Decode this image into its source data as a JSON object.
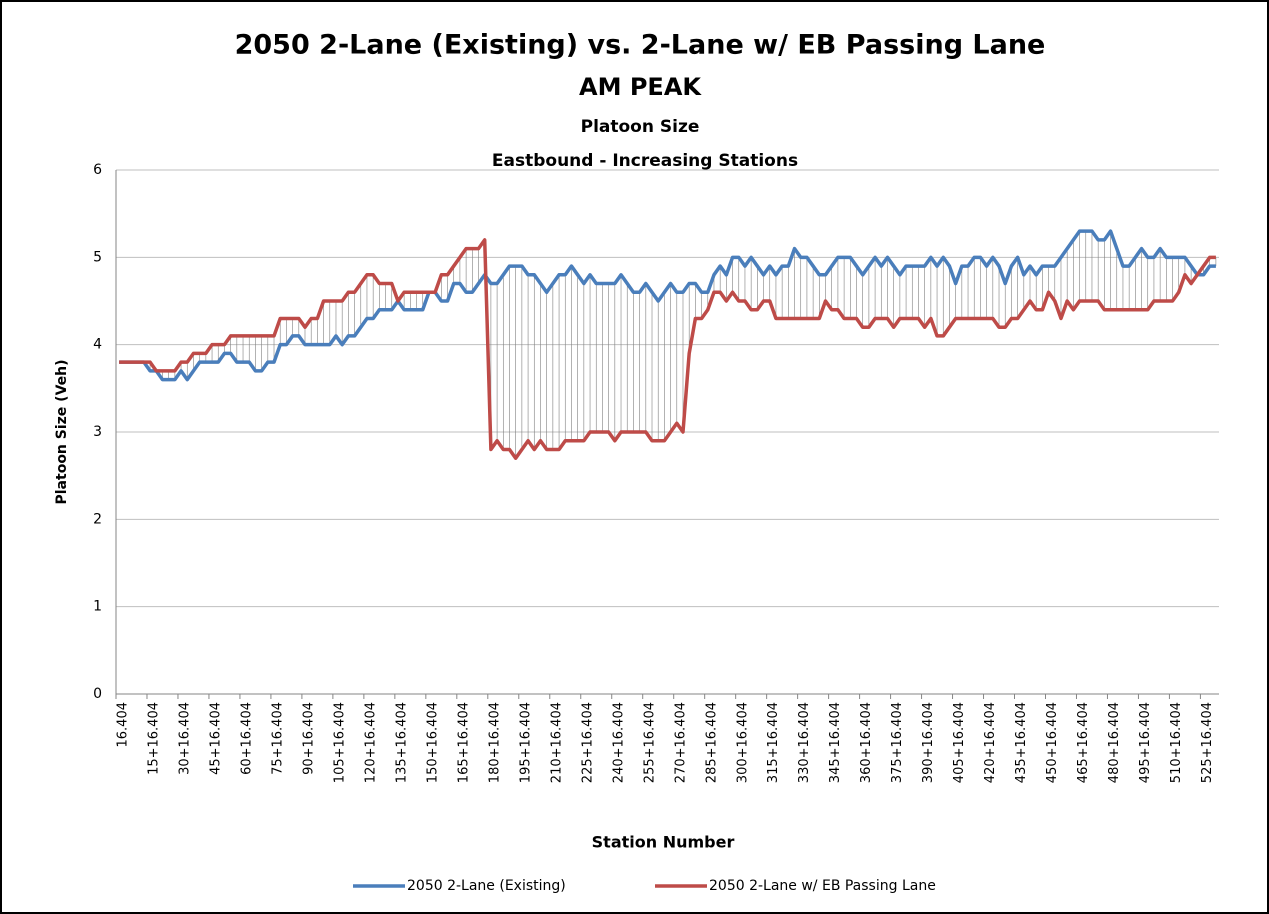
{
  "chart_data": {
    "type": "line",
    "title_lines": [
      "2050 2-Lane (Existing) vs. 2-Lane w/ EB Passing Lane",
      "AM PEAK",
      "Platoon Size",
      "Eastbound - Increasing Stations"
    ],
    "x_label": "Station Number",
    "y_label": "Platoon Size (Veh)",
    "ylim": [
      0,
      6
    ],
    "yticks": [
      0,
      1,
      2,
      3,
      4,
      5,
      6
    ],
    "grid": true,
    "legend": "bottom",
    "categories": [
      "16.404",
      null,
      null,
      null,
      null,
      "15+16.404",
      null,
      null,
      null,
      null,
      "30+16.404",
      null,
      null,
      null,
      null,
      "45+16.404",
      null,
      null,
      null,
      null,
      "60+16.404",
      null,
      null,
      null,
      null,
      "75+16.404",
      null,
      null,
      null,
      null,
      "90+16.404",
      null,
      null,
      null,
      null,
      "105+16.404",
      null,
      null,
      null,
      null,
      "120+16.404",
      null,
      null,
      null,
      null,
      "135+16.404",
      null,
      null,
      null,
      null,
      "150+16.404",
      null,
      null,
      null,
      null,
      "165+16.404",
      null,
      null,
      null,
      null,
      "180+16.404",
      null,
      null,
      null,
      null,
      "195+16.404",
      null,
      null,
      null,
      null,
      "210+16.404",
      null,
      null,
      null,
      null,
      "225+16.404",
      null,
      null,
      null,
      null,
      "240+16.404",
      null,
      null,
      null,
      null,
      "255+16.404",
      null,
      null,
      null,
      null,
      "270+16.404",
      null,
      null,
      null,
      null,
      "285+16.404",
      null,
      null,
      null,
      null,
      "300+16.404",
      null,
      null,
      null,
      null,
      "315+16.404",
      null,
      null,
      null,
      null,
      "330+16.404",
      null,
      null,
      null,
      null,
      "345+16.404",
      null,
      null,
      null,
      null,
      "360+16.404",
      null,
      null,
      null,
      null,
      "375+16.404",
      null,
      null,
      null,
      null,
      "390+16.404",
      null,
      null,
      null,
      null,
      "405+16.404",
      null,
      null,
      null,
      null,
      "420+16.404",
      null,
      null,
      null,
      null,
      "435+16.404",
      null,
      null,
      null,
      null,
      "450+16.404",
      null,
      null,
      null,
      null,
      "465+16.404",
      null,
      null,
      null,
      null,
      "480+16.404",
      null,
      null,
      null,
      null,
      "495+16.404",
      null,
      null,
      null,
      null,
      "510+16.404",
      null,
      null,
      null,
      null,
      "525+16.404",
      null,
      null
    ],
    "series": [
      {
        "name": "2050 2-Lane (Existing)",
        "color": "#4a7ebb",
        "values": [
          3.8,
          3.8,
          3.8,
          3.8,
          3.8,
          3.7,
          3.7,
          3.6,
          3.6,
          3.6,
          3.7,
          3.6,
          3.7,
          3.8,
          3.8,
          3.8,
          3.8,
          3.9,
          3.9,
          3.8,
          3.8,
          3.8,
          3.7,
          3.7,
          3.8,
          3.8,
          4.0,
          4.0,
          4.1,
          4.1,
          4.0,
          4.0,
          4.0,
          4.0,
          4.0,
          4.1,
          4.0,
          4.1,
          4.1,
          4.2,
          4.3,
          4.3,
          4.4,
          4.4,
          4.4,
          4.5,
          4.4,
          4.4,
          4.4,
          4.4,
          4.6,
          4.6,
          4.5,
          4.5,
          4.7,
          4.7,
          4.6,
          4.6,
          4.7,
          4.8,
          4.7,
          4.7,
          4.8,
          4.9,
          4.9,
          4.9,
          4.8,
          4.8,
          4.7,
          4.6,
          4.7,
          4.8,
          4.8,
          4.9,
          4.8,
          4.7,
          4.8,
          4.7,
          4.7,
          4.7,
          4.7,
          4.8,
          4.7,
          4.6,
          4.6,
          4.7,
          4.6,
          4.5,
          4.6,
          4.7,
          4.6,
          4.6,
          4.7,
          4.7,
          4.6,
          4.6,
          4.8,
          4.9,
          4.8,
          5.0,
          5.0,
          4.9,
          5.0,
          4.9,
          4.8,
          4.9,
          4.8,
          4.9,
          4.9,
          5.1,
          5.0,
          5.0,
          4.9,
          4.8,
          4.8,
          4.9,
          5.0,
          5.0,
          5.0,
          4.9,
          4.8,
          4.9,
          5.0,
          4.9,
          5.0,
          4.9,
          4.8,
          4.9,
          4.9,
          4.9,
          4.9,
          5.0,
          4.9,
          5.0,
          4.9,
          4.7,
          4.9,
          4.9,
          5.0,
          5.0,
          4.9,
          5.0,
          4.9,
          4.7,
          4.9,
          5.0,
          4.8,
          4.9,
          4.8,
          4.9,
          4.9,
          4.9,
          5.0,
          5.1,
          5.2,
          5.3,
          5.3,
          5.3,
          5.2,
          5.2,
          5.3,
          5.1,
          4.9,
          4.9,
          5.0,
          5.1,
          5.0,
          5.0,
          5.1,
          5.0,
          5.0,
          5.0,
          5.0,
          4.9,
          4.8,
          4.8,
          4.9,
          4.9
        ]
      },
      {
        "name": "2050 2-Lane w/ EB Passing Lane",
        "color": "#be4b48",
        "values": [
          3.8,
          3.8,
          3.8,
          3.8,
          3.8,
          3.8,
          3.7,
          3.7,
          3.7,
          3.7,
          3.8,
          3.8,
          3.9,
          3.9,
          3.9,
          4.0,
          4.0,
          4.0,
          4.1,
          4.1,
          4.1,
          4.1,
          4.1,
          4.1,
          4.1,
          4.1,
          4.3,
          4.3,
          4.3,
          4.3,
          4.2,
          4.3,
          4.3,
          4.5,
          4.5,
          4.5,
          4.5,
          4.6,
          4.6,
          4.7,
          4.8,
          4.8,
          4.7,
          4.7,
          4.7,
          4.5,
          4.6,
          4.6,
          4.6,
          4.6,
          4.6,
          4.6,
          4.8,
          4.8,
          4.9,
          5.0,
          5.1,
          5.1,
          5.1,
          5.2,
          2.8,
          2.9,
          2.8,
          2.8,
          2.7,
          2.8,
          2.9,
          2.8,
          2.9,
          2.8,
          2.8,
          2.8,
          2.9,
          2.9,
          2.9,
          2.9,
          3.0,
          3.0,
          3.0,
          3.0,
          2.9,
          3.0,
          3.0,
          3.0,
          3.0,
          3.0,
          2.9,
          2.9,
          2.9,
          3.0,
          3.1,
          3.0,
          3.9,
          4.3,
          4.3,
          4.4,
          4.6,
          4.6,
          4.5,
          4.6,
          4.5,
          4.5,
          4.4,
          4.4,
          4.5,
          4.5,
          4.3,
          4.3,
          4.3,
          4.3,
          4.3,
          4.3,
          4.3,
          4.3,
          4.5,
          4.4,
          4.4,
          4.3,
          4.3,
          4.3,
          4.2,
          4.2,
          4.3,
          4.3,
          4.3,
          4.2,
          4.3,
          4.3,
          4.3,
          4.3,
          4.2,
          4.3,
          4.1,
          4.1,
          4.2,
          4.3,
          4.3,
          4.3,
          4.3,
          4.3,
          4.3,
          4.3,
          4.2,
          4.2,
          4.3,
          4.3,
          4.4,
          4.5,
          4.4,
          4.4,
          4.6,
          4.5,
          4.3,
          4.5,
          4.4,
          4.5,
          4.5,
          4.5,
          4.5,
          4.4,
          4.4,
          4.4,
          4.4,
          4.4,
          4.4,
          4.4,
          4.4,
          4.5,
          4.5,
          4.5,
          4.5,
          4.6,
          4.8,
          4.7,
          4.8,
          4.9,
          5.0,
          5.0
        ]
      }
    ]
  }
}
